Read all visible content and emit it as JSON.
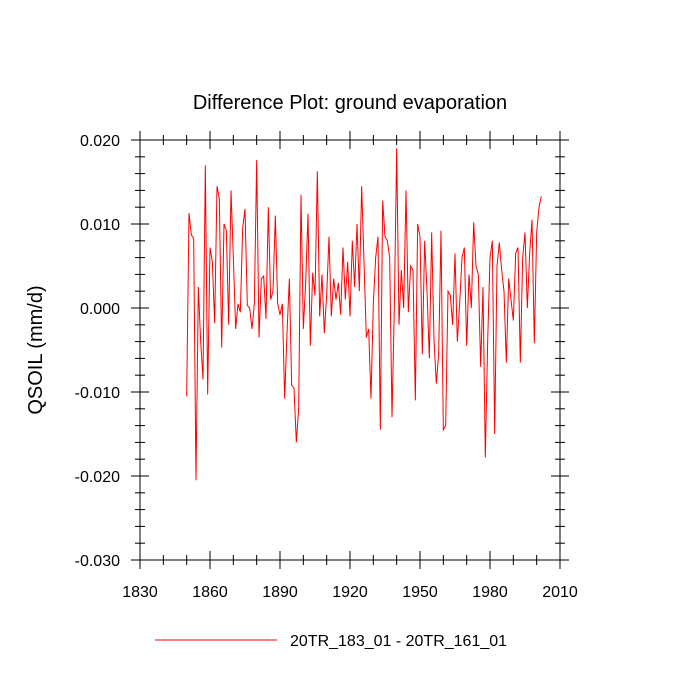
{
  "chart_data": {
    "type": "line",
    "title": "Difference Plot: ground evaporation",
    "xlabel": "",
    "ylabel": "QSOIL  (mm/d)",
    "xlim": [
      1830,
      2010
    ],
    "ylim": [
      -0.03,
      0.02
    ],
    "x_ticks": [
      1830,
      1860,
      1890,
      1920,
      1950,
      1980,
      2010
    ],
    "x_tick_labels": [
      "1830",
      "1860",
      "1890",
      "1920",
      "1950",
      "1980",
      "2010"
    ],
    "y_ticks": [
      -0.03,
      -0.02,
      -0.01,
      0.0,
      0.01,
      0.02
    ],
    "y_tick_labels": [
      "-0.030",
      "-0.020",
      "-0.010",
      "0.000",
      "0.010",
      "0.020"
    ],
    "grid": false,
    "legend_position": "bottom",
    "series": [
      {
        "name": "20TR_183_01 - 20TR_161_01",
        "color": "#ff0000",
        "x_start": 1850,
        "x_step": 1,
        "values": [
          -0.0105,
          0.0113,
          0.0087,
          0.0083,
          -0.0205,
          0.0025,
          -0.004,
          -0.0085,
          0.017,
          -0.0103,
          0.0072,
          0.0055,
          -0.0018,
          0.0145,
          0.013,
          -0.0047,
          0.01,
          0.0092,
          -0.002,
          0.014,
          0.006,
          -0.0025,
          0.0005,
          -0.0005,
          0.0095,
          0.0118,
          0.0003,
          0.0,
          -0.0025,
          0.0005,
          0.0176,
          -0.0035,
          0.0035,
          0.0038,
          -0.0013,
          0.012,
          0.001,
          0.002,
          0.011,
          0.0005,
          -0.0008,
          0.0005,
          -0.0108,
          -0.003,
          0.0035,
          -0.0092,
          -0.0095,
          -0.016,
          -0.012,
          0.0135,
          -0.0025,
          0.003,
          0.0112,
          -0.0045,
          0.0042,
          0.0015,
          0.0163,
          -0.001,
          0.004,
          -0.003,
          0.0015,
          0.0085,
          -0.001,
          0.0035,
          0.001,
          0.003,
          -0.0008,
          0.0072,
          0.001,
          0.0055,
          -0.001,
          0.008,
          0.0025,
          0.01,
          0.002,
          0.0145,
          0.0055,
          -0.0035,
          -0.0025,
          -0.0108,
          0.0005,
          0.006,
          0.0085,
          -0.0145,
          0.0128,
          0.0085,
          0.008,
          0.006,
          -0.013,
          0.0,
          0.019,
          -0.002,
          0.0045,
          0.0,
          0.014,
          -0.0005,
          0.005,
          0.0045,
          -0.011,
          0.01,
          0.0085,
          -0.0055,
          0.008,
          0.002,
          -0.006,
          0.009,
          -0.0038,
          -0.009,
          -0.0055,
          0.0092,
          -0.0145,
          -0.014,
          0.002,
          0.0015,
          -0.002,
          0.0065,
          -0.004,
          0.0005,
          0.006,
          0.0072,
          -0.0045,
          0.004,
          0.0,
          0.0102,
          0.005,
          0.004,
          -0.007,
          0.0025,
          -0.0178,
          -0.004,
          0.006,
          0.008,
          -0.015,
          0.005,
          0.0078,
          0.0045,
          0.002,
          -0.0065,
          0.0035,
          0.001,
          -0.0015,
          0.0065,
          0.0072,
          -0.0065,
          0.006,
          0.009,
          0.0,
          0.0065,
          0.0105,
          -0.0042,
          0.009,
          0.012,
          0.0133
        ]
      }
    ]
  }
}
